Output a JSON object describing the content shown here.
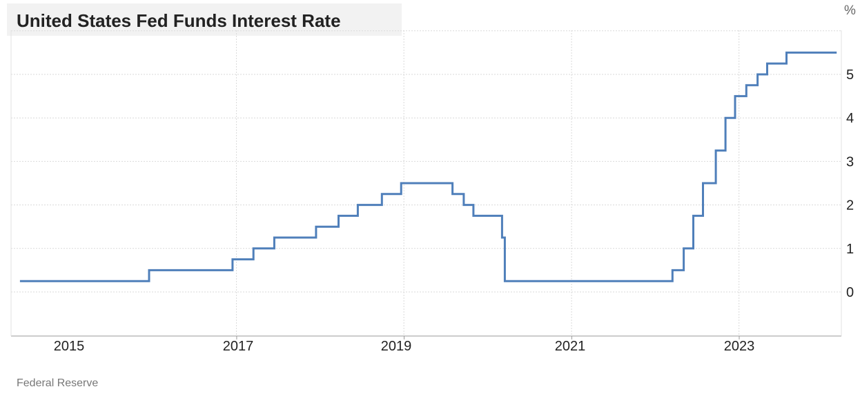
{
  "header": {
    "title": "United States Fed Funds Interest Rate"
  },
  "footer": {
    "source": "Federal Reserve"
  },
  "colors": {
    "line": "#4f7fba",
    "grid": "#d9d9d9",
    "title_bg": "#f2f2f2"
  },
  "chart_data": {
    "type": "line",
    "title": "United States Fed Funds Interest Rate",
    "unit": "%",
    "source": "Federal Reserve",
    "step": true,
    "grid": true,
    "y_axis_position": "right",
    "xlim": [
      "2014-06-01",
      "2024-03-01"
    ],
    "ylim": [
      -1,
      6
    ],
    "x_ticks": [
      "2015",
      "2017",
      "2019",
      "2021",
      "2023"
    ],
    "y_ticks": [
      0,
      1,
      2,
      3,
      4,
      5
    ],
    "series": [
      {
        "points": [
          [
            "2014-06-01",
            0.25
          ],
          [
            "2015-12-16",
            0.5
          ],
          [
            "2016-12-14",
            0.75
          ],
          [
            "2017-03-15",
            1.0
          ],
          [
            "2017-06-14",
            1.25
          ],
          [
            "2017-12-13",
            1.5
          ],
          [
            "2018-03-21",
            1.75
          ],
          [
            "2018-06-13",
            2.0
          ],
          [
            "2018-09-26",
            2.25
          ],
          [
            "2018-12-19",
            2.5
          ],
          [
            "2019-07-31",
            2.25
          ],
          [
            "2019-09-18",
            2.0
          ],
          [
            "2019-10-30",
            1.75
          ],
          [
            "2020-03-03",
            1.25
          ],
          [
            "2020-03-15",
            0.25
          ],
          [
            "2022-03-16",
            0.5
          ],
          [
            "2022-05-04",
            1.0
          ],
          [
            "2022-06-15",
            1.75
          ],
          [
            "2022-07-27",
            2.5
          ],
          [
            "2022-09-21",
            3.25
          ],
          [
            "2022-11-02",
            4.0
          ],
          [
            "2022-12-14",
            4.5
          ],
          [
            "2023-02-01",
            4.75
          ],
          [
            "2023-03-22",
            5.0
          ],
          [
            "2023-05-03",
            5.25
          ],
          [
            "2023-07-26",
            5.5
          ],
          [
            "2024-03-01",
            5.5
          ]
        ]
      }
    ]
  }
}
